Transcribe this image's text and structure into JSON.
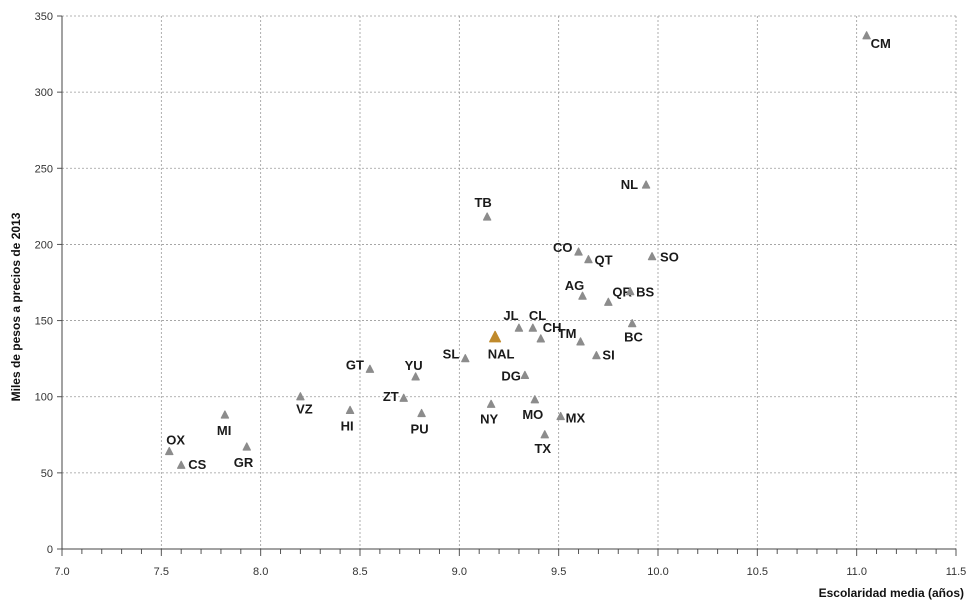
{
  "chart_data": {
    "type": "scatter",
    "title": "",
    "xlabel": "Escolaridad media (años)",
    "ylabel": "Miles de pesos a precios de 2013",
    "xlim": [
      7.0,
      11.5
    ],
    "ylim": [
      0,
      350
    ],
    "x_ticks": [
      "7.0",
      "7.5",
      "8.0",
      "8.5",
      "9.0",
      "9.5",
      "10.0",
      "10.5",
      "11.0",
      "11.5"
    ],
    "y_ticks": [
      "0",
      "50",
      "100",
      "150",
      "200",
      "250",
      "300",
      "350"
    ],
    "grid": true,
    "colors": {
      "points": "#8c8c8c",
      "highlight": "#c08a2c",
      "grid": "#9a9a9a"
    },
    "points": [
      {
        "label": "CM",
        "x": 11.05,
        "y": 337
      },
      {
        "label": "NL",
        "x": 9.94,
        "y": 239
      },
      {
        "label": "TB",
        "x": 9.14,
        "y": 218
      },
      {
        "label": "CO",
        "x": 9.6,
        "y": 195
      },
      {
        "label": "QT",
        "x": 9.65,
        "y": 190
      },
      {
        "label": "SO",
        "x": 9.97,
        "y": 192
      },
      {
        "label": "AG",
        "x": 9.62,
        "y": 166
      },
      {
        "label": "QR",
        "x": 9.75,
        "y": 162
      },
      {
        "label": "BS",
        "x": 9.86,
        "y": 169
      },
      {
        "label": "JL",
        "x": 9.3,
        "y": 145
      },
      {
        "label": "CL",
        "x": 9.37,
        "y": 145
      },
      {
        "label": "CH",
        "x": 9.41,
        "y": 138
      },
      {
        "label": "TM",
        "x": 9.61,
        "y": 136
      },
      {
        "label": "BC",
        "x": 9.87,
        "y": 148
      },
      {
        "label": "SI",
        "x": 9.69,
        "y": 127
      },
      {
        "label": "NAL",
        "x": 9.18,
        "y": 139,
        "highlight": true
      },
      {
        "label": "SL",
        "x": 9.03,
        "y": 125
      },
      {
        "label": "DG",
        "x": 9.33,
        "y": 114
      },
      {
        "label": "GT",
        "x": 8.55,
        "y": 118
      },
      {
        "label": "YU",
        "x": 8.78,
        "y": 113
      },
      {
        "label": "ZT",
        "x": 8.72,
        "y": 99
      },
      {
        "label": "VZ",
        "x": 8.2,
        "y": 100
      },
      {
        "label": "HI",
        "x": 8.45,
        "y": 91
      },
      {
        "label": "PU",
        "x": 8.81,
        "y": 89
      },
      {
        "label": "NY",
        "x": 9.16,
        "y": 95
      },
      {
        "label": "MO",
        "x": 9.38,
        "y": 98
      },
      {
        "label": "MX",
        "x": 9.51,
        "y": 87
      },
      {
        "label": "TX",
        "x": 9.43,
        "y": 75
      },
      {
        "label": "MI",
        "x": 7.82,
        "y": 88
      },
      {
        "label": "GR",
        "x": 7.93,
        "y": 67
      },
      {
        "label": "OX",
        "x": 7.54,
        "y": 64
      },
      {
        "label": "CS",
        "x": 7.6,
        "y": 55
      }
    ]
  }
}
